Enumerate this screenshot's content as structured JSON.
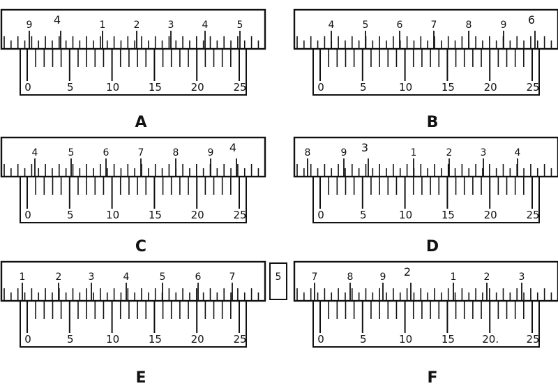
{
  "title": "",
  "panels": [
    {
      "label": "A",
      "main_scale": [
        "9",
        "4",
        "1",
        "2",
        "3",
        "4",
        "5"
      ],
      "main_scale_big": [
        false,
        true,
        false,
        false,
        false,
        false,
        false
      ],
      "vernier_scale": [
        "0",
        "5",
        "10",
        "15",
        "20",
        "25"
      ],
      "extra_box": ""
    },
    {
      "label": "B",
      "main_scale": [
        "4",
        "5",
        "6",
        "7",
        "8",
        "9",
        "6"
      ],
      "main_scale_big": [
        false,
        false,
        false,
        false,
        false,
        false,
        true
      ],
      "vernier_scale": [
        "0",
        "5",
        "10",
        "15",
        "20",
        "25"
      ],
      "extra_box": ""
    },
    {
      "label": "C",
      "main_scale": [
        "4",
        "5",
        "6",
        "7",
        "8",
        "9",
        "4"
      ],
      "main_scale_big": [
        false,
        false,
        false,
        false,
        false,
        false,
        true
      ],
      "vernier_scale": [
        "0",
        "5",
        "10",
        "15",
        "20",
        "25"
      ],
      "extra_box": ""
    },
    {
      "label": "D",
      "main_scale": [
        "8",
        "9",
        "3",
        "1",
        "2",
        "3",
        "4"
      ],
      "main_scale_big": [
        false,
        false,
        true,
        false,
        false,
        false,
        false
      ],
      "vernier_scale": [
        "0",
        "5",
        "10",
        "15",
        "20",
        "25"
      ],
      "extra_box": ""
    },
    {
      "label": "E",
      "main_scale": [
        "1",
        "2",
        "3",
        "4",
        "5",
        "6",
        "7"
      ],
      "main_scale_big": [
        false,
        false,
        false,
        false,
        false,
        false,
        false
      ],
      "vernier_scale": [
        "0",
        "5",
        "10",
        "15",
        "20",
        "25"
      ],
      "extra_box": "5"
    },
    {
      "label": "F",
      "main_scale": [
        "7",
        "8",
        "9",
        "2",
        "1",
        "2",
        "3"
      ],
      "main_scale_big": [
        false,
        false,
        false,
        true,
        false,
        false,
        false
      ],
      "vernier_scale": [
        "0",
        "5",
        "10",
        "15",
        "20.",
        "25"
      ],
      "extra_box": ""
    }
  ]
}
